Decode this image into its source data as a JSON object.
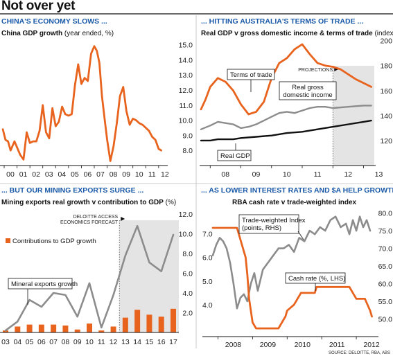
{
  "page": {
    "title": "Not over yet",
    "source": "SOURCE: DELOITTE, RBA, ABS"
  },
  "colors": {
    "orange": "#e8641e",
    "grey": "#8c8c8c",
    "black": "#111111",
    "blue_heading": "#1a5aa8",
    "shade": "#e4e4e4"
  },
  "chart_data": [
    {
      "id": "china",
      "type": "line",
      "section_title": "CHINA'S ECONOMY SLOWS ...",
      "subtitle_bold": "China GDP growth",
      "subtitle_rest": " (year ended, %)",
      "y_axis_side": "right",
      "ylim": [
        7.0,
        15.3
      ],
      "xlim": [
        2000,
        2012.6
      ],
      "x_ticks": [
        {
          "v": 2000,
          "label": "00"
        },
        {
          "v": 2001,
          "label": "01"
        },
        {
          "v": 2002,
          "label": "02"
        },
        {
          "v": 2003,
          "label": "03"
        },
        {
          "v": 2004,
          "label": "04"
        },
        {
          "v": 2005,
          "label": "05"
        },
        {
          "v": 2006,
          "label": "06"
        },
        {
          "v": 2007,
          "label": "07"
        },
        {
          "v": 2008,
          "label": "08"
        },
        {
          "v": 2009,
          "label": "09"
        },
        {
          "v": 2010,
          "label": "10"
        },
        {
          "v": 2011,
          "label": "11"
        },
        {
          "v": 2012,
          "label": "12"
        }
      ],
      "y_ticks": [
        {
          "v": 8,
          "label": "8.0"
        },
        {
          "v": 9,
          "label": "9.0"
        },
        {
          "v": 10,
          "label": "10.0"
        },
        {
          "v": 11,
          "label": "11.0"
        },
        {
          "v": 12,
          "label": "12.0"
        },
        {
          "v": 13,
          "label": "13.0"
        },
        {
          "v": 14,
          "label": "14.0"
        },
        {
          "v": 15,
          "label": "15.0"
        }
      ],
      "grid": false,
      "series": [
        {
          "color": "orange",
          "x": [
            1999.9,
            2000.1,
            2000.3,
            2000.5,
            2000.8,
            2001.0,
            2001.25,
            2001.5,
            2001.75,
            2002.0,
            2002.25,
            2002.5,
            2002.75,
            2003.0,
            2003.25,
            2003.5,
            2003.75,
            2004.0,
            2004.25,
            2004.5,
            2004.75,
            2005.0,
            2005.25,
            2005.5,
            2005.75,
            2006.0,
            2006.25,
            2006.5,
            2006.75,
            2007.0,
            2007.2,
            2007.4,
            2007.6,
            2007.8,
            2008.0,
            2008.25,
            2008.5,
            2008.75,
            2009.0,
            2009.25,
            2009.5,
            2009.75,
            2010.0,
            2010.25,
            2010.5,
            2010.75,
            2011.0,
            2011.25,
            2011.5,
            2011.75,
            2012.0,
            2012.2
          ],
          "y": [
            9.4,
            8.7,
            8.6,
            8.0,
            8.6,
            8.2,
            7.7,
            7.4,
            9.2,
            8.5,
            8.6,
            8.6,
            9.3,
            11.0,
            9.2,
            8.8,
            10.8,
            9.6,
            9.9,
            10.9,
            10.4,
            10.3,
            10.4,
            12.3,
            13.7,
            12.4,
            12.8,
            12.6,
            14.4,
            14.9,
            14.6,
            13.8,
            11.6,
            10.1,
            8.7,
            7.3,
            8.3,
            9.8,
            11.6,
            12.2,
            10.6,
            9.7,
            10.1,
            10.0,
            9.8,
            9.7,
            9.5,
            9.3,
            8.9,
            8.7,
            8.1,
            8.0
          ]
        }
      ]
    },
    {
      "id": "australia",
      "type": "line",
      "section_title": "... HITTING AUSTRALIA'S TERMS OF TRADE ...",
      "subtitle_bold": "Real GDP v gross domestic income & terms of trade",
      "subtitle_rest": " (index)",
      "y_axis_side": "right",
      "ylim": [
        100,
        202
      ],
      "xlim": [
        2007.7,
        2013.35
      ],
      "x_ticks": [
        {
          "v": 2008,
          "label": "08"
        },
        {
          "v": 2009,
          "label": "09"
        },
        {
          "v": 2010,
          "label": "10"
        },
        {
          "v": 2011,
          "label": "11"
        },
        {
          "v": 2012,
          "label": "12"
        },
        {
          "v": 2013,
          "label": "13"
        }
      ],
      "y_ticks": [
        {
          "v": 120,
          "label": "120"
        },
        {
          "v": 140,
          "label": "140"
        },
        {
          "v": 160,
          "label": "160"
        },
        {
          "v": 180,
          "label": "180"
        },
        {
          "v": 200,
          "label": "200"
        }
      ],
      "grid": false,
      "projection_start": 2012.0,
      "projection_label": "PROJECTIONS",
      "series": [
        {
          "name": "Terms of trade",
          "color": "orange",
          "x": [
            2007.7,
            2007.85,
            2008.0,
            2008.25,
            2008.5,
            2008.75,
            2009.0,
            2009.25,
            2009.5,
            2009.75,
            2010.0,
            2010.25,
            2010.5,
            2010.75,
            2011.0,
            2011.25,
            2011.5,
            2011.75,
            2012.0,
            2012.25,
            2012.5,
            2012.75,
            2013.0,
            2013.25
          ],
          "y": [
            145,
            153,
            163,
            170,
            167,
            160,
            149,
            141,
            143,
            151,
            170,
            182,
            186,
            193,
            197,
            189,
            182,
            180,
            179,
            177,
            173,
            169,
            166,
            163
          ]
        },
        {
          "name": "Real gross domestic income",
          "color": "grey",
          "x": [
            2007.7,
            2008.0,
            2008.25,
            2008.5,
            2008.75,
            2009.0,
            2009.25,
            2009.5,
            2009.75,
            2010.0,
            2010.25,
            2010.5,
            2010.75,
            2011.0,
            2011.25,
            2011.5,
            2011.75,
            2012.0,
            2012.5,
            2013.0,
            2013.25
          ],
          "y": [
            129,
            132,
            135,
            134,
            133,
            130,
            131,
            133,
            136,
            139,
            142,
            143,
            142,
            144,
            146,
            147,
            147,
            146,
            147,
            148,
            148
          ]
        },
        {
          "name": "Real GDP",
          "color": "black",
          "x": [
            2007.7,
            2008.0,
            2008.25,
            2008.5,
            2008.75,
            2009.0,
            2009.5,
            2010.0,
            2010.5,
            2011.0,
            2011.5,
            2012.0,
            2012.5,
            2013.0,
            2013.25
          ],
          "y": [
            120,
            120,
            121,
            121,
            121,
            122,
            123,
            124,
            126,
            127,
            129,
            131,
            133,
            135,
            136
          ]
        }
      ],
      "labels": [
        {
          "text": "Terms of trade"
        },
        {
          "text": "Real gross domestic income",
          "lines": [
            "Real gross",
            "domestic income"
          ]
        },
        {
          "text": "Real GDP"
        }
      ]
    },
    {
      "id": "mining",
      "type": "bar+line",
      "section_title": "... BUT OUR MINING EXPORTS SURGE ...",
      "subtitle_bold": "Mining exports real growth v contribution to GDP",
      "subtitle_rest": " (%)",
      "y_axis_side": "right",
      "ylim": [
        0,
        12.5
      ],
      "x_ticks": [
        "03",
        "04",
        "05",
        "06",
        "07",
        "08",
        "09",
        "10",
        "11",
        "12",
        "13",
        "14",
        "15",
        "16",
        "17"
      ],
      "y_ticks": [
        {
          "v": 2,
          "label": "2.0"
        },
        {
          "v": 4,
          "label": "4.0"
        },
        {
          "v": 6,
          "label": "6.0"
        },
        {
          "v": 8,
          "label": "8.0"
        },
        {
          "v": 10,
          "label": "10.0"
        },
        {
          "v": 12,
          "label": "12.0"
        }
      ],
      "grid": false,
      "forecast_start_index": 10,
      "forecast_label_lines": [
        "DELOITTE ACCESS",
        "ECONOMICS FORECAST"
      ],
      "series": [
        {
          "name": "Contributions to GDP growth",
          "type": "bar",
          "color": "orange",
          "values": [
            0.2,
            0.6,
            0.8,
            0.8,
            0.8,
            0.7,
            0.3,
            0.9,
            0.2,
            0.6,
            1.5,
            2.3,
            1.8,
            1.6,
            2.4
          ]
        },
        {
          "name": "Mineral exports growth",
          "type": "line",
          "color": "grey",
          "values": [
            0.2,
            1.1,
            3.3,
            2.6,
            4.0,
            3.8,
            1.6,
            5.0,
            0.5,
            3.8,
            7.8,
            10.8,
            7.1,
            6.2,
            9.9
          ]
        }
      ]
    },
    {
      "id": "rba",
      "type": "line",
      "section_title": "... AS LOWER INTEREST RATES AND $A HELP GROWTH",
      "subtitle_bold": "RBA cash rate v trade-weighted index",
      "subtitle_rest": "",
      "xlim": [
        2007.75,
        2012.62
      ],
      "x_ticks": [
        {
          "v": 2008,
          "label": "2008"
        },
        {
          "v": 2009,
          "label": "2009"
        },
        {
          "v": 2010,
          "label": "2010"
        },
        {
          "v": 2011,
          "label": "2011"
        },
        {
          "v": 2012,
          "label": "2012"
        }
      ],
      "left_axis": {
        "ylim": [
          2.65,
          8.1
        ],
        "ticks": [
          {
            "v": 4,
            "label": "4.0"
          },
          {
            "v": 5,
            "label": "5.0"
          },
          {
            "v": 6,
            "label": "6.0"
          },
          {
            "v": 7,
            "label": "7.0"
          }
        ]
      },
      "right_axis": {
        "ylim": [
          45,
          81.5
        ],
        "ticks": [
          {
            "v": 50,
            "label": "50.0"
          },
          {
            "v": 55,
            "label": "55.0"
          },
          {
            "v": 60,
            "label": "60.0"
          },
          {
            "v": 65,
            "label": "65.0"
          },
          {
            "v": 70,
            "label": "70.0"
          },
          {
            "v": 75,
            "label": "75.0"
          },
          {
            "v": 80,
            "label": "80.0"
          }
        ]
      },
      "grid": false,
      "series": [
        {
          "name": "Trade-weighted Index",
          "axis": "right",
          "color": "grey",
          "x": [
            2007.85,
            2007.95,
            2008.05,
            2008.15,
            2008.25,
            2008.35,
            2008.45,
            2008.55,
            2008.65,
            2008.75,
            2008.85,
            2008.95,
            2009.05,
            2009.15,
            2009.3,
            2009.45,
            2009.6,
            2009.75,
            2009.9,
            2010.05,
            2010.2,
            2010.35,
            2010.5,
            2010.65,
            2010.8,
            2010.95,
            2011.1,
            2011.25,
            2011.4,
            2011.55,
            2011.7,
            2011.8,
            2011.9,
            2012.0,
            2012.1,
            2012.2,
            2012.3,
            2012.4
          ],
          "y": [
            68,
            71,
            73,
            72,
            70,
            66,
            60,
            53,
            56,
            57,
            55,
            60,
            63,
            58,
            64,
            66,
            68,
            70,
            70,
            71,
            69,
            73,
            72,
            75,
            74,
            76,
            75,
            78,
            79,
            76,
            77,
            74,
            78,
            75,
            79,
            76,
            78,
            75
          ]
        },
        {
          "name": "Cash rate",
          "axis": "left",
          "color": "orange",
          "x": [
            2007.85,
            2008.15,
            2008.55,
            2008.6,
            2008.8,
            2008.85,
            2008.9,
            2009.0,
            2009.1,
            2009.25,
            2009.75,
            2009.85,
            2009.95,
            2010.0,
            2010.2,
            2010.3,
            2010.4,
            2010.8,
            2010.85,
            2011.8,
            2011.9,
            2012.0,
            2012.25,
            2012.4,
            2012.45
          ],
          "y": [
            7.25,
            7.25,
            7.25,
            7.0,
            6.0,
            5.25,
            4.25,
            3.25,
            3.0,
            3.0,
            3.0,
            3.25,
            3.5,
            3.75,
            4.0,
            4.25,
            4.5,
            4.5,
            4.75,
            4.75,
            4.5,
            4.25,
            4.25,
            3.75,
            3.5
          ]
        }
      ],
      "labels": [
        {
          "lines": [
            "Trade-weighted Index",
            "(points, RHS)"
          ]
        },
        {
          "lines": [
            "Cash rate",
            " (%, LHS)"
          ]
        }
      ]
    }
  ]
}
